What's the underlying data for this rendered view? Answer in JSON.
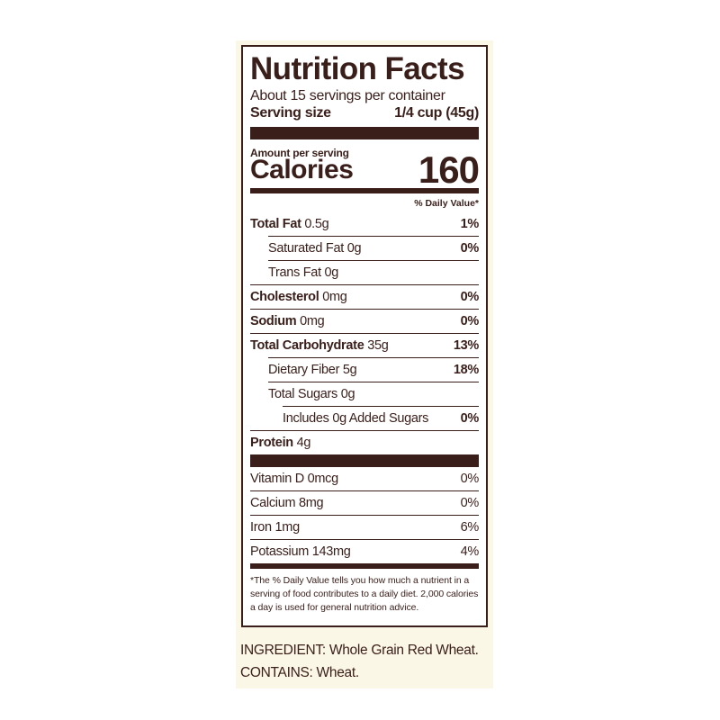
{
  "title": "Nutrition Facts",
  "servings": "About 15 servings per container",
  "serving_size": {
    "label": "Serving size",
    "value": "1/4 cup (45g)"
  },
  "amount_per_serving": "Amount per serving",
  "calories": {
    "label": "Calories",
    "value": "160"
  },
  "daily_value_header": "% Daily Value*",
  "nutrients": [
    {
      "name": "Total Fat",
      "amount": "0.5g",
      "dv": "1%",
      "bold": true,
      "indent": 0
    },
    {
      "name": "Saturated Fat",
      "amount": "0g",
      "dv": "0%",
      "bold": false,
      "indent": 1
    },
    {
      "name": "Trans Fat",
      "amount": "0g",
      "bold": false,
      "indent": 1
    },
    {
      "name": "Cholesterol",
      "amount": "0mg",
      "dv": "0%",
      "bold": true,
      "indent": 0
    },
    {
      "name": "Sodium",
      "amount": "0mg",
      "dv": "0%",
      "bold": true,
      "indent": 0
    },
    {
      "name": "Total Carbohydrate",
      "amount": "35g",
      "dv": "13%",
      "bold": true,
      "indent": 0
    },
    {
      "name": "Dietary Fiber",
      "amount": "5g",
      "dv": "18%",
      "bold": false,
      "indent": 1
    },
    {
      "name": "Total Sugars",
      "amount": "0g",
      "bold": false,
      "indent": 1
    },
    {
      "name": "Includes 0g Added Sugars",
      "dv": "0%",
      "bold": false,
      "indent": 2
    },
    {
      "name": "Protein",
      "amount": "4g",
      "bold": true,
      "indent": 0
    }
  ],
  "vitamins": [
    {
      "name": "Vitamin D",
      "amount": "0mcg",
      "dv": "0%"
    },
    {
      "name": "Calcium",
      "amount": "8mg",
      "dv": "0%"
    },
    {
      "name": "Iron",
      "amount": "1mg",
      "dv": "6%"
    },
    {
      "name": "Potassium",
      "amount": "143mg",
      "dv": "4%"
    }
  ],
  "footnote": "*The % Daily Value tells you how much a nutrient in a serving of food contributes to a daily diet. 2,000 calories a day is used for general nutrition advice.",
  "ingredients": "INGREDIENT: Whole Grain Red Wheat. CONTAINS: Wheat."
}
